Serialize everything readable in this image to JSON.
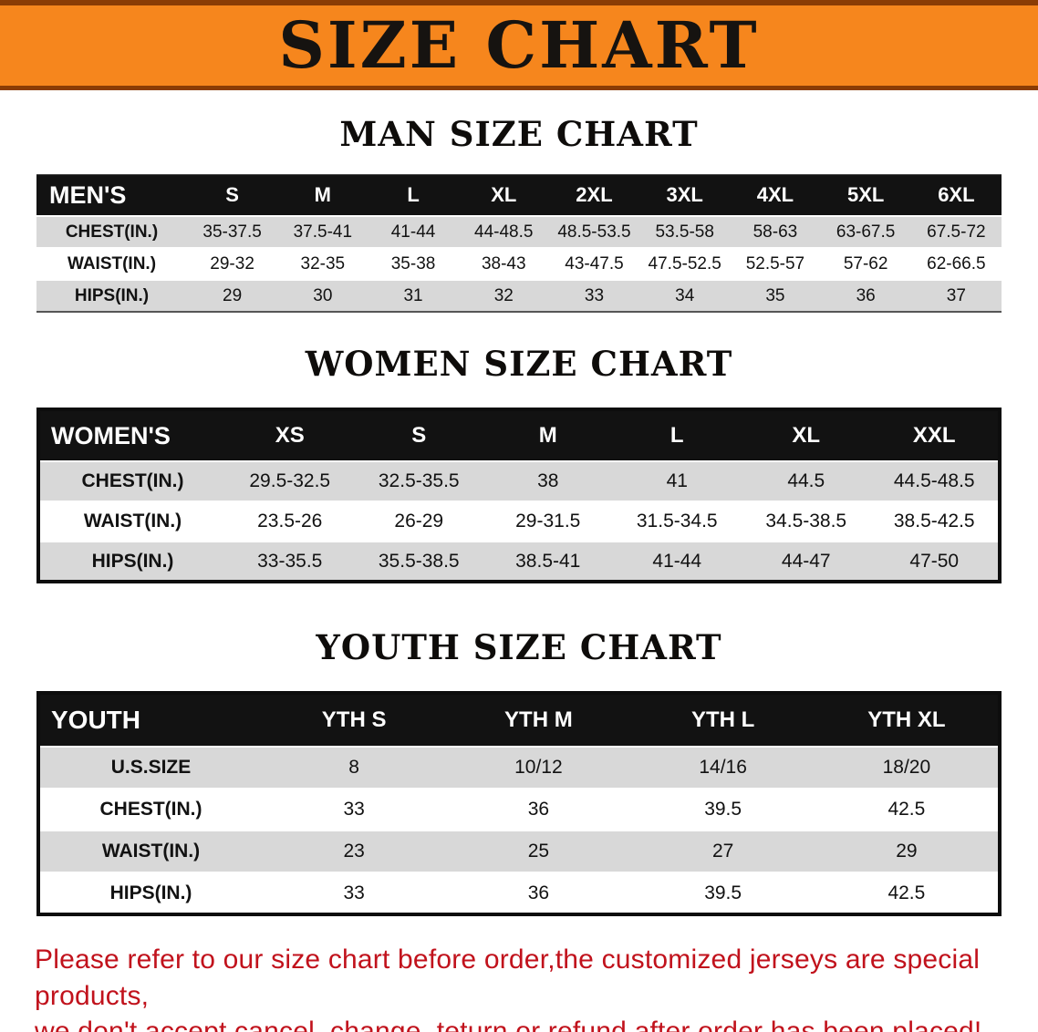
{
  "banner": {
    "title": "SIZE CHART"
  },
  "sections": [
    {
      "id": "men",
      "heading": "MAN SIZE CHART",
      "table": {
        "corner_label": "MEN'S",
        "columns": [
          "S",
          "M",
          "L",
          "XL",
          "2XL",
          "3XL",
          "4XL",
          "5XL",
          "6XL"
        ],
        "rows": [
          {
            "label": "CHEST(IN.)",
            "values": [
              "35-37.5",
              "37.5-41",
              "41-44",
              "44-48.5",
              "48.5-53.5",
              "53.5-58",
              "58-63",
              "63-67.5",
              "67.5-72"
            ]
          },
          {
            "label": "WAIST(IN.)",
            "values": [
              "29-32",
              "32-35",
              "35-38",
              "38-43",
              "43-47.5",
              "47.5-52.5",
              "52.5-57",
              "57-62",
              "62-66.5"
            ]
          },
          {
            "label": "HIPS(IN.)",
            "values": [
              "29",
              "30",
              "31",
              "32",
              "33",
              "34",
              "35",
              "36",
              "37"
            ]
          }
        ]
      }
    },
    {
      "id": "women",
      "heading": "WOMEN SIZE CHART",
      "table": {
        "corner_label": "WOMEN'S",
        "columns": [
          "XS",
          "S",
          "M",
          "L",
          "XL",
          "XXL"
        ],
        "rows": [
          {
            "label": "CHEST(IN.)",
            "values": [
              "29.5-32.5",
              "32.5-35.5",
              "38",
              "41",
              "44.5",
              "44.5-48.5"
            ]
          },
          {
            "label": "WAIST(IN.)",
            "values": [
              "23.5-26",
              "26-29",
              "29-31.5",
              "31.5-34.5",
              "34.5-38.5",
              "38.5-42.5"
            ]
          },
          {
            "label": "HIPS(IN.)",
            "values": [
              "33-35.5",
              "35.5-38.5",
              "38.5-41",
              "41-44",
              "44-47",
              "47-50"
            ]
          }
        ]
      }
    },
    {
      "id": "youth",
      "heading": "YOUTH SIZE CHART",
      "table": {
        "corner_label": "YOUTH",
        "columns": [
          "YTH S",
          "YTH M",
          "YTH L",
          "YTH XL"
        ],
        "rows": [
          {
            "label": "U.S.SIZE",
            "values": [
              "8",
              "10/12",
              "14/16",
              "18/20"
            ]
          },
          {
            "label": "CHEST(IN.)",
            "values": [
              "33",
              "36",
              "39.5",
              "42.5"
            ]
          },
          {
            "label": "WAIST(IN.)",
            "values": [
              "23",
              "25",
              "27",
              "29"
            ]
          },
          {
            "label": "HIPS(IN.)",
            "values": [
              "33",
              "36",
              "39.5",
              "42.5"
            ]
          }
        ]
      }
    }
  ],
  "footer": {
    "lines": [
      "Please refer to our size chart before order,the customized jerseys are special products,",
      "we don't accept cancel, change, teturn or refund after order has been placed!"
    ]
  },
  "colors": {
    "banner_bg": "#F6861D",
    "banner_edge": "#8A3C05",
    "header_bg": "#121212",
    "header_text": "#FFFFFF",
    "row_alt_bg": "#D8D8D8",
    "footer_text": "#C1121C",
    "text": "#111111"
  }
}
